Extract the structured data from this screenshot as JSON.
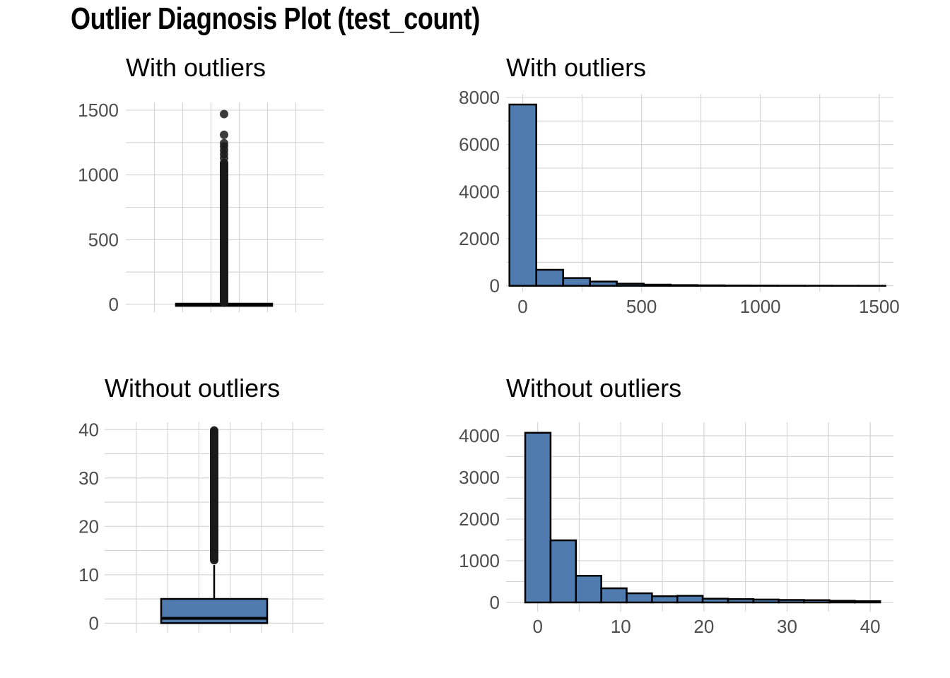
{
  "title": "Outlier Diagnosis Plot (test_count)",
  "colors": {
    "fill": "#4f7bae",
    "outline": "#000000",
    "grid": "#d3d3d3",
    "point": "#1a1a1a"
  },
  "chart_data": [
    {
      "type": "boxplot",
      "title": "With outliers",
      "ylim": [
        -60,
        1560
      ],
      "yticks": [
        0,
        500,
        1000,
        1500
      ],
      "ytick_labels": [
        "0",
        "500",
        "1000",
        "1500"
      ],
      "box": {
        "q1": 0,
        "median": 1,
        "q3": 5,
        "whisker_low": 0,
        "whisker_high": 12
      },
      "outliers_range": [
        13,
        1100
      ],
      "outliers_extra": [
        1130,
        1160,
        1190,
        1220,
        1245,
        1310,
        1470
      ]
    },
    {
      "type": "bar",
      "title": "With outliers",
      "xlim": [
        -70,
        1560
      ],
      "ylim": [
        -250,
        8150
      ],
      "xticks": [
        0,
        500,
        1000,
        1500
      ],
      "xtick_labels": [
        "0",
        "500",
        "1000",
        "1500"
      ],
      "yticks": [
        0,
        2000,
        4000,
        6000,
        8000
      ],
      "ytick_labels": [
        "0",
        "2000",
        "4000",
        "6000",
        "8000"
      ],
      "bin_width": 113,
      "bins": [
        {
          "x0": -56,
          "x1": 57,
          "count": 7700
        },
        {
          "x0": 57,
          "x1": 170,
          "count": 680
        },
        {
          "x0": 170,
          "x1": 283,
          "count": 330
        },
        {
          "x0": 283,
          "x1": 396,
          "count": 180
        },
        {
          "x0": 396,
          "x1": 509,
          "count": 90
        },
        {
          "x0": 509,
          "x1": 622,
          "count": 50
        },
        {
          "x0": 622,
          "x1": 735,
          "count": 30
        },
        {
          "x0": 735,
          "x1": 848,
          "count": 20
        },
        {
          "x0": 848,
          "x1": 961,
          "count": 14
        },
        {
          "x0": 961,
          "x1": 1074,
          "count": 10
        },
        {
          "x0": 1074,
          "x1": 1187,
          "count": 7
        },
        {
          "x0": 1187,
          "x1": 1300,
          "count": 5
        },
        {
          "x0": 1300,
          "x1": 1413,
          "count": 3
        },
        {
          "x0": 1413,
          "x1": 1526,
          "count": 2
        }
      ]
    },
    {
      "type": "boxplot",
      "title": "Without outliers",
      "ylim": [
        -2,
        41.5
      ],
      "yticks": [
        0,
        10,
        20,
        30,
        40
      ],
      "ytick_labels": [
        "0",
        "10",
        "20",
        "30",
        "40"
      ],
      "box": {
        "q1": 0,
        "median": 1,
        "q3": 5,
        "whisker_low": 0,
        "whisker_high": 12
      },
      "outliers_range": [
        13,
        40
      ],
      "outliers_extra": []
    },
    {
      "type": "bar",
      "title": "Without outliers",
      "xlim": [
        -3.8,
        42.8
      ],
      "ylim": [
        -220,
        4320
      ],
      "xticks": [
        0,
        10,
        20,
        30,
        40
      ],
      "xtick_labels": [
        "0",
        "10",
        "20",
        "30",
        "40"
      ],
      "yticks": [
        0,
        1000,
        2000,
        3000,
        4000
      ],
      "ytick_labels": [
        "0",
        "1000",
        "2000",
        "3000",
        "4000"
      ],
      "bins": [
        {
          "x0": -1.5,
          "x1": 1.55,
          "count": 4070
        },
        {
          "x0": 1.55,
          "x1": 4.6,
          "count": 1490
        },
        {
          "x0": 4.6,
          "x1": 7.65,
          "count": 640
        },
        {
          "x0": 7.65,
          "x1": 10.7,
          "count": 340
        },
        {
          "x0": 10.7,
          "x1": 13.75,
          "count": 220
        },
        {
          "x0": 13.75,
          "x1": 16.8,
          "count": 150
        },
        {
          "x0": 16.8,
          "x1": 19.85,
          "count": 160
        },
        {
          "x0": 19.85,
          "x1": 22.9,
          "count": 90
        },
        {
          "x0": 22.9,
          "x1": 25.95,
          "count": 80
        },
        {
          "x0": 25.95,
          "x1": 29.0,
          "count": 70
        },
        {
          "x0": 29.0,
          "x1": 32.05,
          "count": 60
        },
        {
          "x0": 32.05,
          "x1": 35.1,
          "count": 55
        },
        {
          "x0": 35.1,
          "x1": 38.15,
          "count": 40
        },
        {
          "x0": 38.15,
          "x1": 41.2,
          "count": 30
        }
      ]
    }
  ]
}
